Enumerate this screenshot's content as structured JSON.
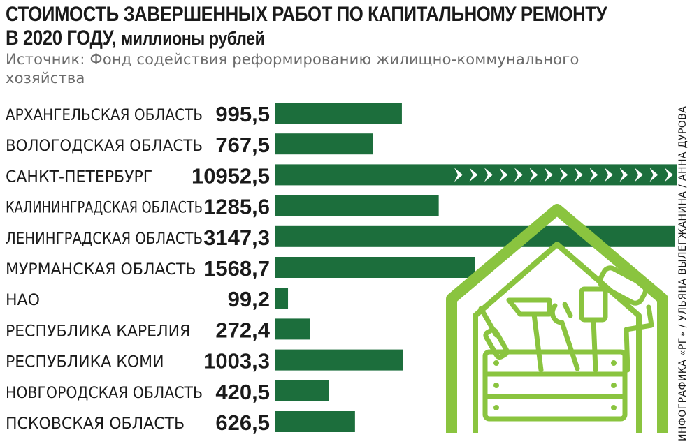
{
  "header": {
    "title_line1": "СТОИМОСТЬ ЗАВЕРШЕННЫХ РАБОТ ПО КАПИТАЛЬНОМУ РЕМОНТУ",
    "title_line2": "В 2020 ГОДУ,",
    "unit": "миллионы рублей",
    "source": "Источник: Фонд содействия реформированию жилищно-коммунального хозяйства",
    "credit": "ИНФОГРАФИКА «РГ» / УЛЬЯНА ВЫЛЕГЖАНИНА / АННА ДУРОВА"
  },
  "colors": {
    "bar": "#1c6e3c",
    "house": "#8ac43f",
    "chevron": "#ffffff"
  },
  "illustration": {
    "icon": "house-toolbox-icon"
  },
  "chart_data": {
    "type": "bar",
    "orientation": "horizontal",
    "title": "СТОИМОСТЬ ЗАВЕРШЕННЫХ РАБОТ ПО КАПИТАЛЬНОМУ РЕМОНТУ В 2020 ГОДУ, миллионы рублей",
    "xlabel": "",
    "ylabel": "",
    "categories": [
      "АРХАНГЕЛЬСКАЯ ОБЛАСТЬ",
      "ВОЛОГОДСКАЯ ОБЛАСТЬ",
      "САНКТ-ПЕТЕРБУРГ",
      "КАЛИНИНГРАДСКАЯ ОБЛАСТЬ",
      "ЛЕНИНГРАДСКАЯ ОБЛАСТЬ",
      "МУРМАНСКАЯ ОБЛАСТЬ",
      "НАО",
      "РЕСПУБЛИКА КАРЕЛИЯ",
      "РЕСПУБЛИКА КОМИ",
      "НОВГОРОДСКАЯ ОБЛАСТЬ",
      "ПСКОВСКАЯ ОБЛАСТЬ"
    ],
    "values": [
      995.5,
      767.5,
      10952.5,
      1285.6,
      3147.3,
      1568.7,
      99.2,
      272.4,
      1003.3,
      420.5,
      626.5
    ],
    "value_labels": [
      "995,5",
      "767,5",
      "10952,5",
      "1285,6",
      "3147,3",
      "1568,7",
      "99,2",
      "272,4",
      "1003,3",
      "420,5",
      "626,5"
    ],
    "truncated": [
      false,
      false,
      true,
      false,
      false,
      false,
      false,
      false,
      false,
      false,
      false
    ],
    "xlim": [
      0,
      3147.3
    ],
    "grid": false,
    "legend": "none"
  }
}
